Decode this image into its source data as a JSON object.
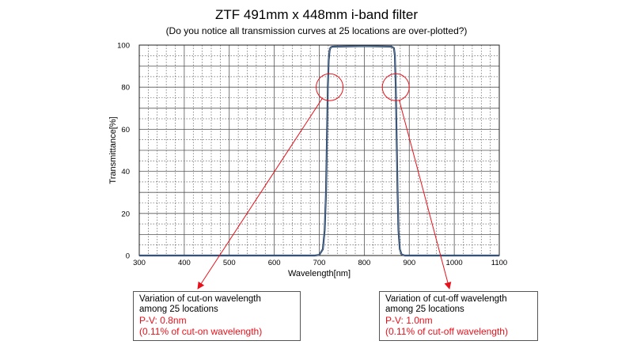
{
  "chart_data": {
    "type": "line",
    "title": "ZTF 491mm x 448mm i-band filter",
    "subtitle": "(Do you notice all transmission curves at 25 locations are over-plotted?)",
    "xlabel": "Wavelength[nm]",
    "ylabel": "Transmittance[%]",
    "xlim": [
      300,
      1100
    ],
    "ylim": [
      0,
      100
    ],
    "xticks": [
      300,
      400,
      500,
      600,
      700,
      800,
      900,
      1000,
      1100
    ],
    "yticks": [
      0,
      20,
      40,
      60,
      80,
      100
    ],
    "grid": true,
    "series": [
      {
        "color": "#1f3a5f",
        "x": [
          300,
          690,
          700,
          708,
          712,
          715,
          717,
          719,
          721,
          723,
          725,
          728,
          735,
          800,
          860,
          866,
          868,
          870,
          872,
          874,
          876,
          879,
          883,
          890,
          1100
        ],
        "y": [
          0,
          0,
          0.3,
          3,
          12,
          30,
          55,
          80,
          93,
          97.5,
          98.8,
          99.2,
          99.3,
          99.5,
          99.3,
          98.5,
          95,
          80,
          55,
          30,
          12,
          3,
          0.5,
          0,
          0
        ]
      }
    ],
    "annotations": [
      {
        "circle_center": [
          723,
          80
        ],
        "lines": [
          "Variation of cut-on wavelength",
          "among 25 locations"
        ],
        "pv": "P-V: 0.8nm",
        "pct": "(0.11% of cut-on wavelength)"
      },
      {
        "circle_center": [
          870,
          80
        ],
        "lines": [
          "Variation of cut-off wavelength",
          "among 25 locations"
        ],
        "pv": "P-V: 1.0nm",
        "pct": "(0.11% of cut-off wavelength)"
      }
    ],
    "annotation_color": "#e8101a"
  }
}
